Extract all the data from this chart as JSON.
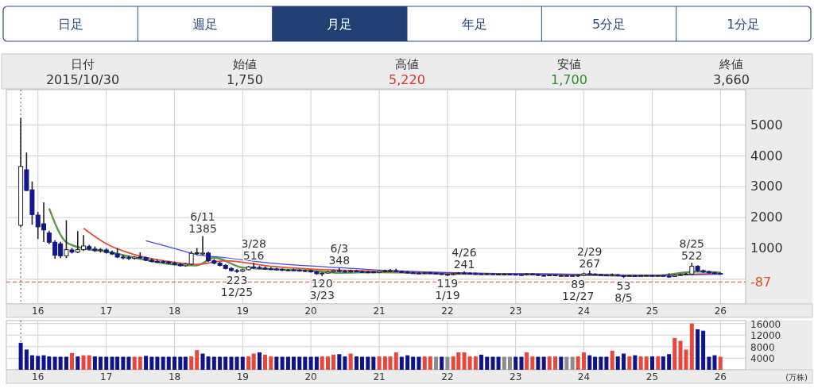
{
  "chart_data": [
    {
      "type": "other",
      "categories": [
        "日足",
        "週足",
        "月足",
        "年足",
        "5分足",
        "1分足"
      ],
      "annotations": [
        "日付",
        "2015/10/30",
        "始値",
        "1,750",
        "高値",
        "5,220",
        "安値",
        "1,700",
        "終値",
        "3,660"
      ]
    },
    {
      "type": "candlestick",
      "x": [
        "2015-10",
        "2015-11",
        "2015-12",
        "2016-01",
        "2016-02",
        "2016-03",
        "2016-04",
        "2016-05",
        "2016-06",
        "2016-07",
        "2016-08",
        "2016-09",
        "2016-10",
        "2016-11",
        "2016-12",
        "2017-01",
        "2017-02",
        "2017-03",
        "2017-04",
        "2017-05",
        "2017-06",
        "2017-07",
        "2017-08",
        "2017-09",
        "2017-10",
        "2017-11",
        "2017-12",
        "2018-01",
        "2018-02",
        "2018-03",
        "2018-04",
        "2018-05",
        "2018-06",
        "2018-07",
        "2018-08",
        "2018-09",
        "2018-10",
        "2018-11",
        "2018-12",
        "2019-01",
        "2019-02",
        "2019-03",
        "2019-04",
        "2019-05",
        "2019-06",
        "2019-07",
        "2019-08",
        "2019-09",
        "2019-10",
        "2019-11",
        "2019-12",
        "2020-01",
        "2020-02",
        "2020-03",
        "2020-04",
        "2020-05",
        "2020-06",
        "2020-07",
        "2020-08",
        "2020-09",
        "2020-10",
        "2020-11",
        "2020-12",
        "2021-01",
        "2021-02",
        "2021-03",
        "2021-04",
        "2021-05",
        "2021-06",
        "2021-07",
        "2021-08",
        "2021-09",
        "2021-10",
        "2021-11",
        "2021-12",
        "2022-01",
        "2022-02",
        "2022-03",
        "2022-04",
        "2022-05",
        "2022-06",
        "2022-07",
        "2022-08",
        "2022-09",
        "2022-10",
        "2022-11",
        "2022-12",
        "2023-01",
        "2023-02",
        "2023-03",
        "2023-04",
        "2023-05",
        "2023-06",
        "2023-07",
        "2023-08",
        "2023-09",
        "2023-10",
        "2023-11",
        "2023-12",
        "2024-01",
        "2024-02",
        "2024-03",
        "2024-04",
        "2024-05",
        "2024-06",
        "2024-07",
        "2024-08",
        "2024-09",
        "2024-10",
        "2024-11",
        "2024-12",
        "2025-01",
        "2025-02",
        "2025-03",
        "2025-04",
        "2025-05",
        "2025-06",
        "2025-07",
        "2025-08",
        "2025-09",
        "2025-10",
        "2025-11",
        "2025-12",
        "2026-01"
      ],
      "ohlc": [
        [
          1750,
          5220,
          1700,
          3660
        ],
        [
          3550,
          4100,
          2870,
          2880
        ],
        [
          2900,
          3160,
          1780,
          2100
        ],
        [
          2080,
          2170,
          1320,
          1700
        ],
        [
          1800,
          2480,
          1220,
          1600
        ],
        [
          1500,
          1560,
          1150,
          1200
        ],
        [
          1200,
          1250,
          680,
          780
        ],
        [
          1150,
          1200,
          700,
          760
        ],
        [
          760,
          1900,
          700,
          960
        ],
        [
          950,
          1000,
          850,
          880
        ],
        [
          880,
          1550,
          860,
          960
        ],
        [
          960,
          1420,
          930,
          1080
        ],
        [
          1060,
          1100,
          960,
          980
        ],
        [
          980,
          1050,
          900,
          930
        ],
        [
          930,
          1000,
          880,
          960
        ],
        [
          950,
          990,
          850,
          870
        ],
        [
          870,
          920,
          800,
          820
        ],
        [
          820,
          1000,
          700,
          720
        ],
        [
          720,
          780,
          660,
          700
        ],
        [
          700,
          760,
          640,
          680
        ],
        [
          680,
          740,
          650,
          720
        ],
        [
          720,
          860,
          680,
          700
        ],
        [
          700,
          720,
          600,
          620
        ],
        [
          620,
          660,
          560,
          580
        ],
        [
          580,
          620,
          540,
          570
        ],
        [
          570,
          600,
          530,
          560
        ],
        [
          560,
          580,
          500,
          520
        ],
        [
          520,
          560,
          470,
          480
        ],
        [
          480,
          520,
          420,
          440
        ],
        [
          440,
          520,
          420,
          490
        ],
        [
          490,
          900,
          470,
          840
        ],
        [
          840,
          1000,
          800,
          860
        ],
        [
          820,
          1385,
          780,
          850
        ],
        [
          850,
          880,
          580,
          600
        ],
        [
          600,
          640,
          500,
          520
        ],
        [
          520,
          560,
          430,
          450
        ],
        [
          450,
          480,
          330,
          350
        ],
        [
          350,
          380,
          260,
          280
        ],
        [
          280,
          320,
          223,
          260
        ],
        [
          260,
          330,
          250,
          310
        ],
        [
          310,
          420,
          300,
          400
        ],
        [
          400,
          516,
          350,
          380
        ],
        [
          380,
          420,
          340,
          360
        ],
        [
          360,
          400,
          320,
          340
        ],
        [
          340,
          380,
          310,
          330
        ],
        [
          330,
          360,
          300,
          320
        ],
        [
          320,
          340,
          280,
          290
        ],
        [
          290,
          320,
          270,
          300
        ],
        [
          300,
          330,
          280,
          290
        ],
        [
          290,
          310,
          260,
          270
        ],
        [
          270,
          300,
          250,
          280
        ],
        [
          280,
          300,
          230,
          240
        ],
        [
          240,
          260,
          160,
          180
        ],
        [
          180,
          210,
          120,
          200
        ],
        [
          200,
          260,
          190,
          240
        ],
        [
          240,
          300,
          230,
          280
        ],
        [
          280,
          348,
          250,
          260
        ],
        [
          260,
          290,
          230,
          240
        ],
        [
          240,
          300,
          230,
          270
        ],
        [
          270,
          290,
          240,
          250
        ],
        [
          250,
          270,
          220,
          230
        ],
        [
          230,
          260,
          210,
          240
        ],
        [
          240,
          250,
          210,
          220
        ],
        [
          220,
          280,
          210,
          260
        ],
        [
          260,
          300,
          240,
          270
        ],
        [
          270,
          320,
          250,
          280
        ],
        [
          280,
          330,
          240,
          250
        ],
        [
          250,
          270,
          220,
          230
        ],
        [
          230,
          250,
          200,
          210
        ],
        [
          210,
          230,
          190,
          200
        ],
        [
          200,
          220,
          180,
          190
        ],
        [
          190,
          230,
          180,
          210
        ],
        [
          210,
          230,
          190,
          200
        ],
        [
          200,
          210,
          170,
          180
        ],
        [
          180,
          190,
          150,
          160
        ],
        [
          160,
          170,
          119,
          150
        ],
        [
          150,
          190,
          140,
          180
        ],
        [
          180,
          220,
          170,
          200
        ],
        [
          200,
          241,
          180,
          190
        ],
        [
          190,
          210,
          170,
          180
        ],
        [
          180,
          200,
          165,
          175
        ],
        [
          175,
          185,
          160,
          170
        ],
        [
          170,
          190,
          160,
          175
        ],
        [
          175,
          180,
          155,
          160
        ],
        [
          160,
          175,
          150,
          165
        ],
        [
          165,
          180,
          155,
          165
        ],
        [
          165,
          175,
          150,
          160
        ],
        [
          160,
          170,
          145,
          150
        ],
        [
          150,
          160,
          135,
          140
        ],
        [
          140,
          190,
          135,
          170
        ],
        [
          170,
          185,
          150,
          155
        ],
        [
          155,
          160,
          120,
          125
        ],
        [
          125,
          140,
          110,
          120
        ],
        [
          120,
          150,
          115,
          140
        ],
        [
          140,
          150,
          110,
          115
        ],
        [
          115,
          130,
          105,
          120
        ],
        [
          120,
          130,
          110,
          120
        ],
        [
          120,
          125,
          100,
          110
        ],
        [
          110,
          140,
          89,
          130
        ],
        [
          130,
          200,
          120,
          180
        ],
        [
          180,
          267,
          160,
          170
        ],
        [
          170,
          180,
          145,
          150
        ],
        [
          150,
          160,
          135,
          140
        ],
        [
          140,
          150,
          125,
          130
        ],
        [
          130,
          170,
          120,
          150
        ],
        [
          150,
          155,
          110,
          115
        ],
        [
          115,
          120,
          53,
          100
        ],
        [
          100,
          130,
          95,
          120
        ],
        [
          120,
          125,
          100,
          105
        ],
        [
          105,
          130,
          100,
          120
        ],
        [
          120,
          135,
          110,
          125
        ],
        [
          125,
          130,
          100,
          105
        ],
        [
          105,
          130,
          100,
          120
        ],
        [
          120,
          125,
          95,
          100
        ],
        [
          100,
          180,
          60,
          90
        ],
        [
          90,
          150,
          85,
          130
        ],
        [
          130,
          170,
          120,
          150
        ],
        [
          150,
          200,
          140,
          170
        ],
        [
          170,
          522,
          160,
          420
        ],
        [
          420,
          440,
          250,
          280
        ],
        [
          280,
          300,
          220,
          240
        ],
        [
          240,
          260,
          200,
          210
        ],
        [
          210,
          230,
          180,
          190
        ],
        [
          190,
          210,
          160,
          180
        ]
      ],
      "series": [
        {
          "type": "line",
          "color": "#5a9a4a",
          "x": [
            "2016-03",
            "2016-06",
            "2016-09",
            "2017-01",
            "2017-06",
            "2018-01",
            "2018-05",
            "2018-08",
            "2019-01",
            "2019-06",
            "2020-01",
            "2020-06",
            "2021-01",
            "2022-01",
            "2023-01",
            "2024-01",
            "2025-01",
            "2025-09",
            "2026-01"
          ],
          "values": [
            2300,
            1200,
            1000,
            900,
            700,
            480,
            450,
            700,
            380,
            330,
            280,
            210,
            230,
            180,
            170,
            140,
            110,
            250,
            220
          ]
        },
        {
          "type": "line",
          "color": "#e0503c",
          "x": [
            "2016-09",
            "2017-01",
            "2017-06",
            "2018-01",
            "2018-05",
            "2018-10",
            "2019-06",
            "2020-01",
            "2021-01",
            "2022-01",
            "2023-01",
            "2024-01",
            "2025-01",
            "2025-09",
            "2026-01"
          ],
          "values": [
            1650,
            1150,
            800,
            550,
            480,
            600,
            420,
            330,
            260,
            200,
            170,
            150,
            120,
            170,
            190
          ]
        },
        {
          "type": "line",
          "color": "#4a4adc",
          "x": [
            "2017-08",
            "2018-01",
            "2018-05",
            "2018-10",
            "2019-06",
            "2020-01",
            "2021-01",
            "2022-01",
            "2023-01",
            "2024-01",
            "2025-01",
            "2026-01"
          ],
          "values": [
            1250,
            1000,
            800,
            700,
            520,
            430,
            300,
            220,
            180,
            160,
            130,
            160
          ]
        }
      ],
      "xlim": [
        "2015-07-16",
        "2026-05-16"
      ],
      "xticks": [
        {
          "value": "2016-01",
          "label": "16"
        },
        {
          "value": "2017-01",
          "label": "17"
        },
        {
          "value": "2018-01",
          "label": "18"
        },
        {
          "value": "2019-01",
          "label": "19"
        },
        {
          "value": "2020-01",
          "label": "20"
        },
        {
          "value": "2021-01",
          "label": "21"
        },
        {
          "value": "2022-01",
          "label": "22"
        },
        {
          "value": "2023-01",
          "label": "23"
        },
        {
          "value": "2024-01",
          "label": "24"
        },
        {
          "value": "2025-01",
          "label": "25"
        },
        {
          "value": "2026-01",
          "label": "26"
        }
      ],
      "ylim": [
        -800,
        6150
      ],
      "yticks": [
        {
          "value": 0,
          "label": null
        },
        1000,
        2000,
        3000,
        4000,
        5000
      ],
      "grid": true,
      "ref_lines": [
        {
          "axis": "y",
          "value": -87,
          "label": "-87",
          "color": "#e0501e",
          "line_style": "dashed"
        },
        {
          "axis": "x",
          "value": "2015-10",
          "color": "#555555",
          "line_style": "dotted"
        }
      ],
      "annotations": [
        {
          "text": "6/11\n1385",
          "x": "2018-06",
          "y": 1385
        },
        {
          "text": "223\n12/25",
          "x": "2018-12",
          "y": 223
        },
        {
          "text": "3/28\n516",
          "x": "2019-03",
          "y": 516
        },
        {
          "text": "120\n3/23",
          "x": "2020-03",
          "y": 120
        },
        {
          "text": "6/3\n348",
          "x": "2020-06",
          "y": 348
        },
        {
          "text": "119\n1/19",
          "x": "2022-01",
          "y": 119
        },
        {
          "text": "4/26\n241",
          "x": "2022-04",
          "y": 241
        },
        {
          "text": "89\n12/27",
          "x": "2023-12",
          "y": 89
        },
        {
          "text": "2/29\n267",
          "x": "2024-02",
          "y": 267
        },
        {
          "text": "53\n8/5",
          "x": "2024-08",
          "y": 53
        },
        {
          "text": "8/25\n522",
          "x": "2025-08",
          "y": 522
        }
      ]
    },
    {
      "type": "bar",
      "x": [
        "2015-10",
        "2015-11",
        "2015-12",
        "2016-01",
        "2016-02",
        "2016-03",
        "2016-04",
        "2016-05",
        "2016-06",
        "2016-07",
        "2016-08",
        "2016-09",
        "2016-10",
        "2016-11",
        "2016-12",
        "2017-01",
        "2017-02",
        "2017-03",
        "2017-04",
        "2017-05",
        "2017-06",
        "2017-07",
        "2017-08",
        "2017-09",
        "2017-10",
        "2017-11",
        "2017-12",
        "2018-01",
        "2018-02",
        "2018-03",
        "2018-04",
        "2018-05",
        "2018-06",
        "2018-07",
        "2018-08",
        "2018-09",
        "2018-10",
        "2018-11",
        "2018-12",
        "2019-01",
        "2019-02",
        "2019-03",
        "2019-04",
        "2019-05",
        "2019-06",
        "2019-07",
        "2019-08",
        "2019-09",
        "2019-10",
        "2019-11",
        "2019-12",
        "2020-01",
        "2020-02",
        "2020-03",
        "2020-04",
        "2020-05",
        "2020-06",
        "2020-07",
        "2020-08",
        "2020-09",
        "2020-10",
        "2020-11",
        "2020-12",
        "2021-01",
        "2021-02",
        "2021-03",
        "2021-04",
        "2021-05",
        "2021-06",
        "2021-07",
        "2021-08",
        "2021-09",
        "2021-10",
        "2021-11",
        "2021-12",
        "2022-01",
        "2022-02",
        "2022-03",
        "2022-04",
        "2022-05",
        "2022-06",
        "2022-07",
        "2022-08",
        "2022-09",
        "2022-10",
        "2022-11",
        "2022-12",
        "2023-01",
        "2023-02",
        "2023-03",
        "2023-04",
        "2023-05",
        "2023-06",
        "2023-07",
        "2023-08",
        "2023-09",
        "2023-10",
        "2023-11",
        "2023-12",
        "2024-01",
        "2024-02",
        "2024-03",
        "2024-04",
        "2024-05",
        "2024-06",
        "2024-07",
        "2024-08",
        "2024-09",
        "2024-10",
        "2024-11",
        "2024-12",
        "2025-01",
        "2025-02",
        "2025-03",
        "2025-04",
        "2025-05",
        "2025-06",
        "2025-07",
        "2025-08",
        "2025-09",
        "2025-10",
        "2025-11",
        "2025-12",
        "2026-01"
      ],
      "values": [
        9300,
        7000,
        5000,
        4800,
        5000,
        4600,
        4500,
        4500,
        4500,
        5800,
        4600,
        5000,
        5000,
        4600,
        4500,
        4500,
        4500,
        4500,
        4500,
        4500,
        4500,
        4500,
        4800,
        4500,
        4500,
        4500,
        4500,
        4500,
        4500,
        4500,
        4600,
        6800,
        5600,
        4600,
        4500,
        4500,
        4500,
        4500,
        4500,
        4500,
        4600,
        5600,
        6000,
        5200,
        4600,
        4500,
        4500,
        4500,
        4500,
        4500,
        4500,
        4500,
        4500,
        4600,
        4600,
        5200,
        5400,
        4600,
        5600,
        4600,
        4500,
        4500,
        4500,
        4600,
        4600,
        4600,
        6000,
        4500,
        5000,
        4500,
        4500,
        4600,
        4600,
        4500,
        4500,
        4500,
        4600,
        6000,
        6000,
        4600,
        4600,
        5200,
        4500,
        4500,
        4500,
        4500,
        4500,
        4500,
        4500,
        6000,
        4600,
        4500,
        4500,
        4600,
        4600,
        4500,
        4500,
        4500,
        4600,
        6000,
        5000,
        4500,
        4500,
        4500,
        6600,
        4600,
        5600,
        4600,
        5000,
        4600,
        4600,
        4600,
        4600,
        4600,
        5400,
        11000,
        10000,
        7000,
        16000,
        14000,
        13500,
        4500,
        5000,
        4500
      ],
      "colors": [
        "#10148a",
        "#10148a",
        "#10148a",
        "#10148a",
        "#10148a",
        "#10148a",
        "#10148a",
        "#10148a",
        "#10148a",
        "#e8473c",
        "#10148a",
        "#e8473c",
        "#e8473c",
        "#10148a",
        "#10148a",
        "#10148a",
        "#10148a",
        "#10148a",
        "#10148a",
        "#10148a",
        "#e8473c",
        "#e8473c",
        "#10148a",
        "#10148a",
        "#10148a",
        "#10148a",
        "#10148a",
        "#10148a",
        "#10148a",
        "#10148a",
        "#e8473c",
        "#e8473c",
        "#10148a",
        "#10148a",
        "#10148a",
        "#10148a",
        "#10148a",
        "#10148a",
        "#10148a",
        "#10148a",
        "#e8473c",
        "#e8473c",
        "#10148a",
        "#e8473c",
        "#e8473c",
        "#10148a",
        "#10148a",
        "#10148a",
        "#10148a",
        "#10148a",
        "#10148a",
        "#10148a",
        "#10148a",
        "#e8473c",
        "#e8473c",
        "#e8473c",
        "#10148a",
        "#10148a",
        "#e8473c",
        "#10148a",
        "#10148a",
        "#10148a",
        "#10148a",
        "#e8473c",
        "#e8473c",
        "#e8473c",
        "#e8473c",
        "#10148a",
        "#10148a",
        "#10148a",
        "#10148a",
        "#e8473c",
        "#e8473c",
        "#8c8c8c",
        "#10148a",
        "#8c8c8c",
        "#e8473c",
        "#e8473c",
        "#e8473c",
        "#e8473c",
        "#e8473c",
        "#10148a",
        "#10148a",
        "#10148a",
        "#10148a",
        "#8c8c8c",
        "#8c8c8c",
        "#10148a",
        "#10148a",
        "#e8473c",
        "#e8473c",
        "#10148a",
        "#10148a",
        "#e8473c",
        "#e8473c",
        "#10148a",
        "#8c8c8c",
        "#8c8c8c",
        "#e8473c",
        "#e8473c",
        "#10148a",
        "#10148a",
        "#10148a",
        "#10148a",
        "#e8473c",
        "#10148a",
        "#10148a",
        "#e8473c",
        "#10148a",
        "#e8473c",
        "#e8473c",
        "#10148a",
        "#e8473c",
        "#10148a",
        "#10148a",
        "#e8473c",
        "#e8473c",
        "#e8473c",
        "#e8473c",
        "#10148a",
        "#10148a",
        "#10148a",
        "#10148a",
        "#e8473c"
      ],
      "xlim": [
        "2015-07-16",
        "2026-05-16"
      ],
      "xticks": [
        {
          "value": "2016-01",
          "label": "16"
        },
        {
          "value": "2017-01",
          "label": "17"
        },
        {
          "value": "2018-01",
          "label": "18"
        },
        {
          "value": "2019-01",
          "label": "19"
        },
        {
          "value": "2020-01",
          "label": "20"
        },
        {
          "value": "2021-01",
          "label": "21"
        },
        {
          "value": "2022-01",
          "label": "22"
        },
        {
          "value": "2023-01",
          "label": "23"
        },
        {
          "value": "2024-01",
          "label": "24"
        },
        {
          "value": "2025-01",
          "label": "25"
        },
        {
          "value": "2026-01",
          "label": "26"
        }
      ],
      "ylim": [
        0,
        17000
      ],
      "yticks": [
        4000,
        8000,
        12000,
        16000
      ],
      "grid": true,
      "ylabel": "(万株)",
      "ref_lines": [
        {
          "axis": "x",
          "value": "2015-10",
          "color": "#555555",
          "line_style": "dotted"
        }
      ]
    }
  ]
}
